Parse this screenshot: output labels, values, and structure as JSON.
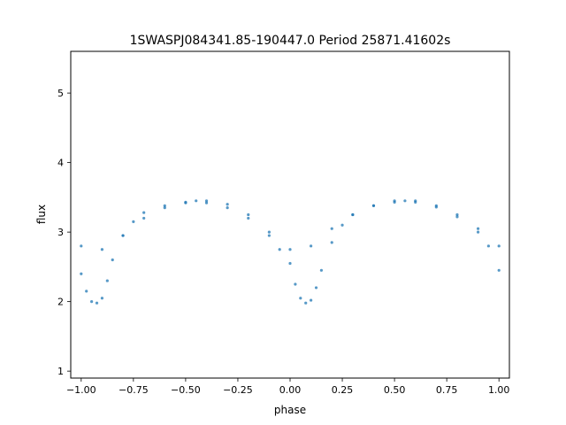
{
  "chart_data": {
    "type": "scatter",
    "title": "1SWASPJ084341.85-190447.0 Period 25871.41602s",
    "xlabel": "phase",
    "ylabel": "flux",
    "xlim": [
      -1.05,
      1.05
    ],
    "ylim": [
      0.9,
      5.6
    ],
    "x_ticks": [
      -1.0,
      -0.75,
      -0.5,
      -0.25,
      0.0,
      0.25,
      0.5,
      0.75,
      1.0
    ],
    "x_tick_labels": [
      "−1.00",
      "−0.75",
      "−0.50",
      "−0.25",
      "0.00",
      "0.25",
      "0.50",
      "0.75",
      "1.00"
    ],
    "y_ticks": [
      1,
      2,
      3,
      4,
      5
    ],
    "y_tick_labels": [
      "1",
      "2",
      "3",
      "4",
      "5"
    ],
    "grid": false,
    "point_color": "#1f77b4",
    "series": [
      {
        "x": [
          -1.0,
          -0.975,
          -0.95,
          -0.925,
          -0.9,
          -0.875,
          -0.85,
          -0.8,
          -0.75,
          -0.7,
          -0.6,
          -0.5,
          -0.45,
          -0.4,
          -0.3,
          -0.2,
          -0.1,
          -0.05,
          0.0,
          0.025,
          0.05,
          0.075,
          0.1,
          0.125,
          0.15,
          0.2,
          0.25,
          0.3,
          0.4,
          0.5,
          0.55,
          0.6,
          0.7,
          0.8,
          0.9,
          0.95,
          1.0
        ],
        "y": [
          2.4,
          2.15,
          2.0,
          1.98,
          2.05,
          2.3,
          2.6,
          2.95,
          3.15,
          3.28,
          3.38,
          3.43,
          3.45,
          3.42,
          3.35,
          3.2,
          2.95,
          2.75,
          2.55,
          2.25,
          2.05,
          1.98,
          2.02,
          2.2,
          2.45,
          2.85,
          3.1,
          3.25,
          3.38,
          3.43,
          3.45,
          3.43,
          3.36,
          3.22,
          3.0,
          2.8,
          2.45
        ]
      },
      {
        "x": [
          -1.0,
          -0.9,
          -0.8,
          -0.7,
          -0.6,
          -0.5,
          -0.4,
          -0.3,
          -0.2,
          -0.1,
          0.0,
          0.1,
          0.2,
          0.3,
          0.4,
          0.5,
          0.6,
          0.7,
          0.8,
          0.9,
          1.0
        ],
        "y": [
          2.8,
          2.75,
          2.95,
          3.2,
          3.35,
          3.42,
          3.45,
          3.4,
          3.25,
          3.0,
          2.75,
          2.8,
          3.05,
          3.25,
          3.38,
          3.45,
          3.45,
          3.38,
          3.25,
          3.05,
          2.8
        ]
      }
    ]
  }
}
